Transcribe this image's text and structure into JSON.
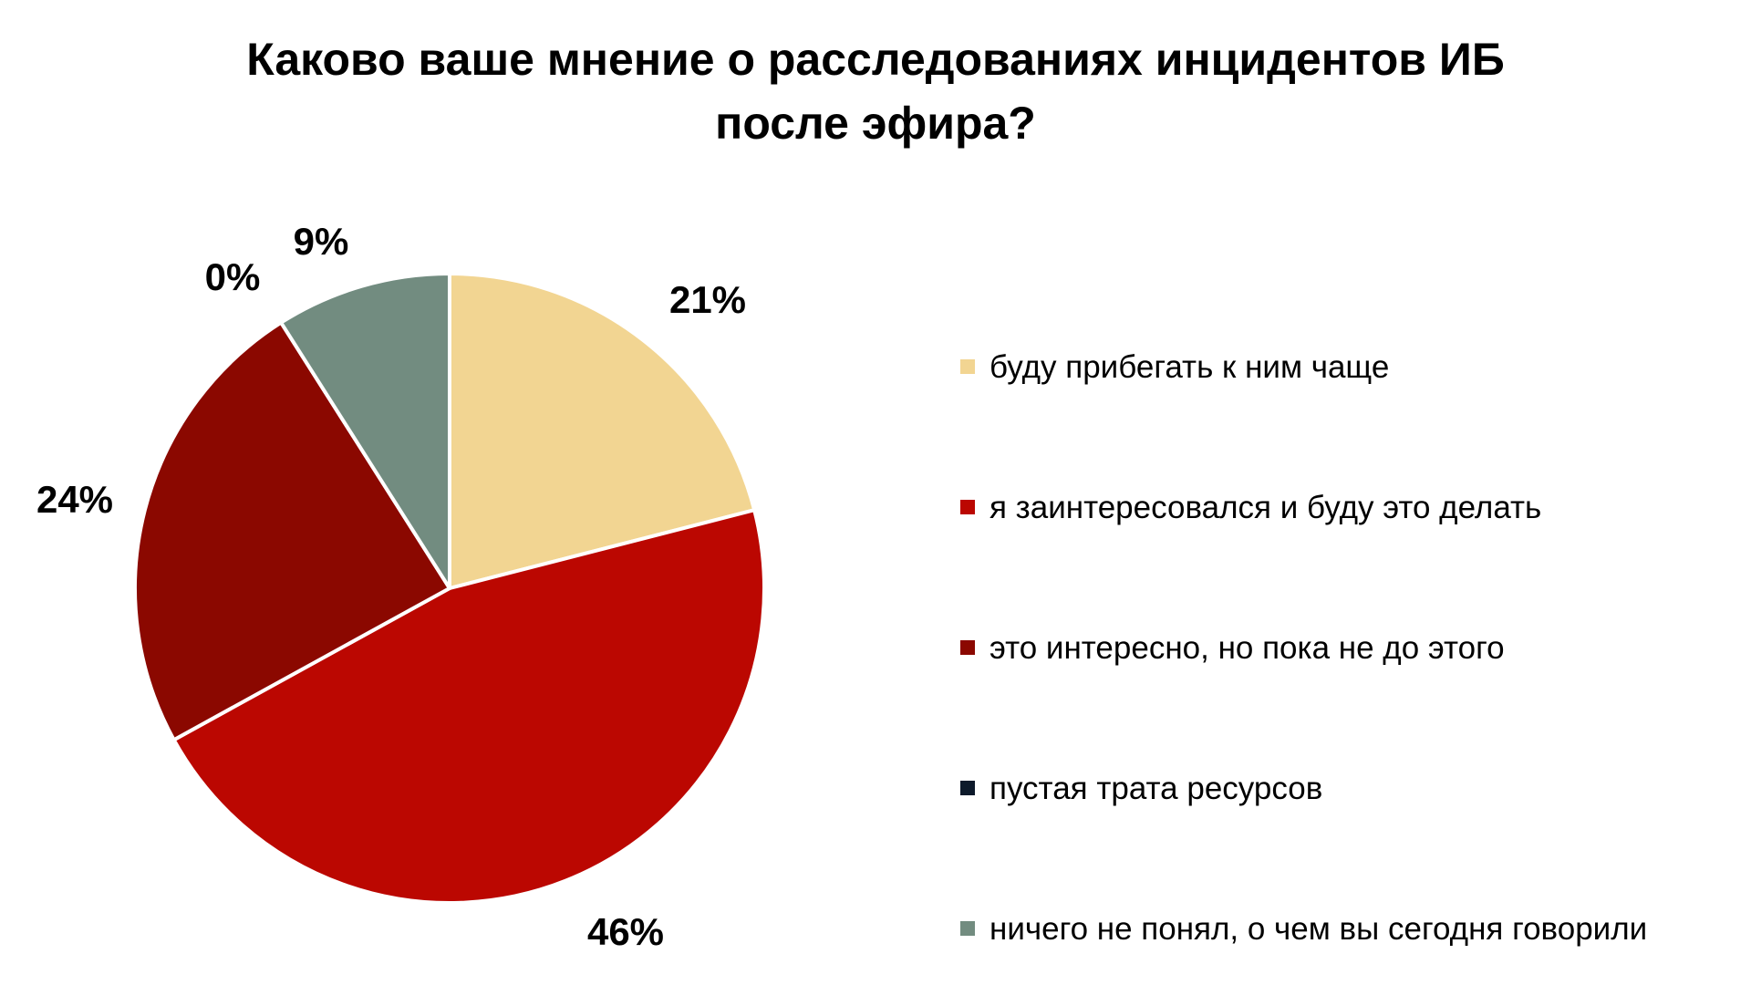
{
  "chart_data": {
    "type": "pie",
    "title_lines": [
      "Каково ваше мнение о расследованиях инцидентов ИБ",
      "после эфира?"
    ],
    "categories": [
      "буду прибегать к ним чаще",
      "я заинтересовался и буду это делать",
      "это интересно, но пока не до этого",
      "пустая трата ресурсов",
      "ничего не понял, о чем вы сегодня говорили"
    ],
    "values": [
      21,
      46,
      24,
      0,
      9
    ],
    "value_labels": [
      "21%",
      "46%",
      "24%",
      "0%",
      "9%"
    ],
    "colors": [
      "#F2D592",
      "#BB0701",
      "#8B0800",
      "#0D1A2B",
      "#728C80"
    ],
    "legend_position": "right",
    "start_angle": "top",
    "direction": "clockwise"
  }
}
